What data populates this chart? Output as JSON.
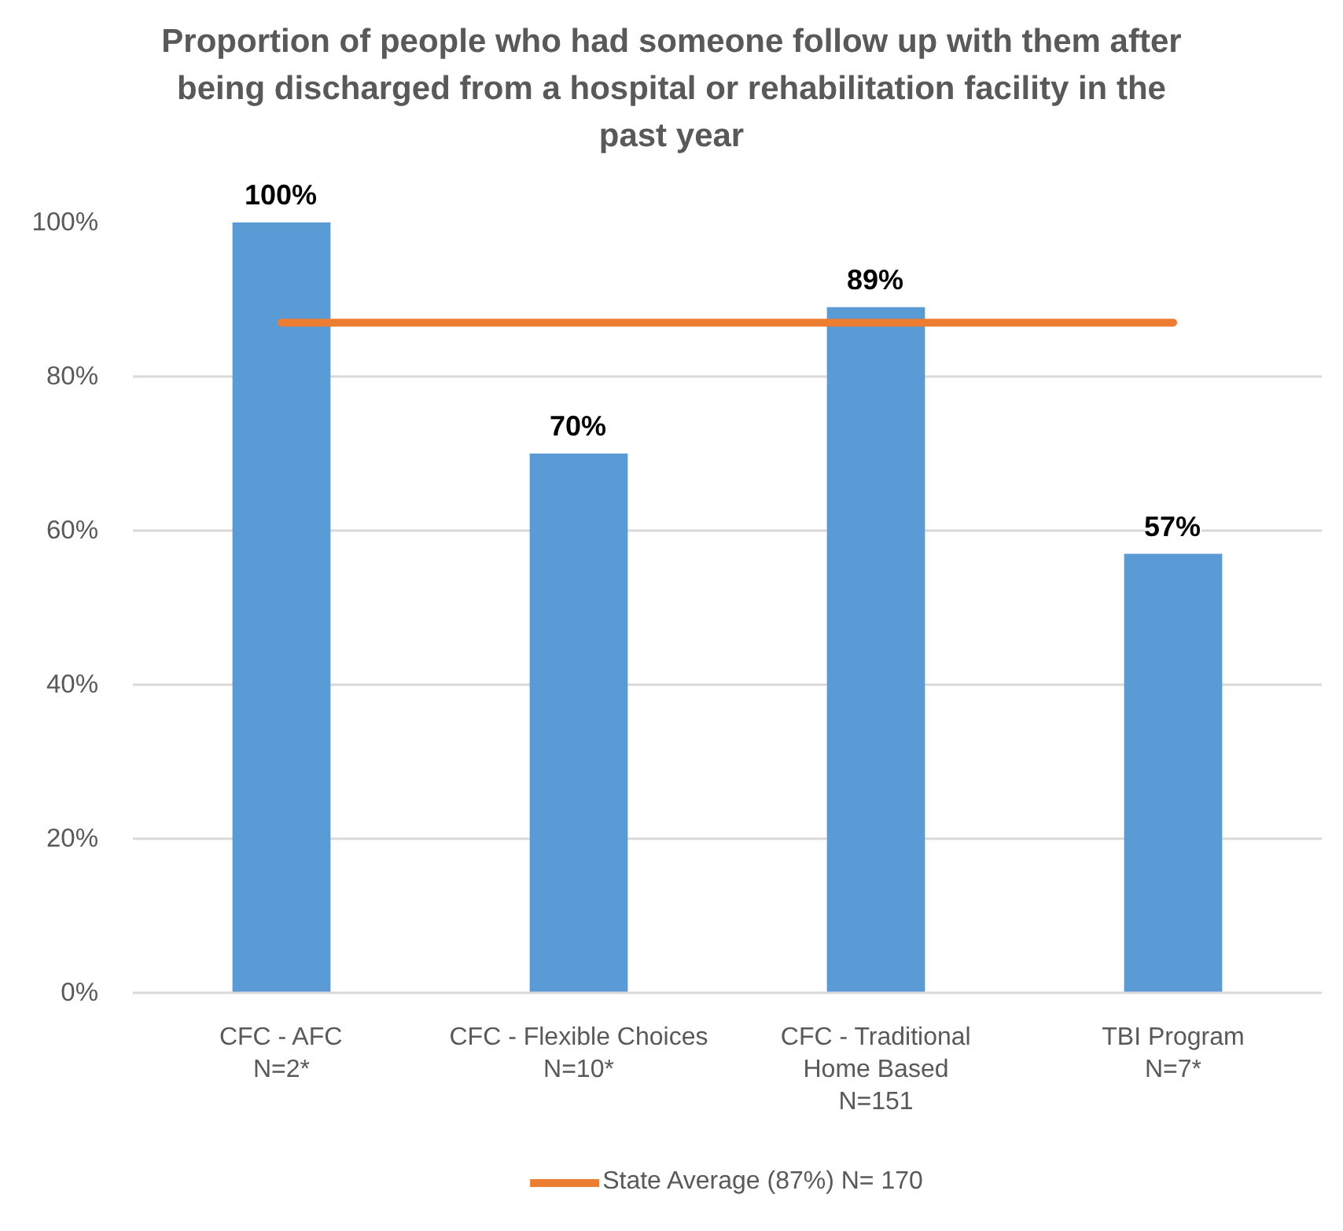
{
  "chart_data": {
    "type": "bar",
    "title": "Proportion of people who had someone follow up with them after being discharged from a hospital or rehabilitation facility in the past year",
    "categories": [
      "CFC - AFC\nN=2*",
      "CFC - Flexible Choices\nN=10*",
      "CFC - Traditional\nHome Based\nN=151",
      "TBI Program\nN=7*"
    ],
    "series": [
      {
        "color": "#5b9bd5",
        "values": [
          100,
          70,
          89,
          57
        ],
        "value_labels": [
          "100%",
          "70%",
          "89%",
          "57%"
        ]
      },
      {
        "type": "line",
        "name": "State Average (87%) N= 170",
        "color": "#ed7d31",
        "values": [
          87,
          87,
          87,
          87
        ]
      }
    ],
    "ylim": [
      0,
      100
    ],
    "yticks": [
      {
        "value": 0,
        "label": "0%"
      },
      {
        "value": 20,
        "label": "20%"
      },
      {
        "value": 40,
        "label": "40%"
      },
      {
        "value": 60,
        "label": "60%"
      },
      {
        "value": 80,
        "label": "80%"
      },
      {
        "value": 100,
        "label": "100%"
      }
    ],
    "grid": "y",
    "legend": "bottom"
  }
}
